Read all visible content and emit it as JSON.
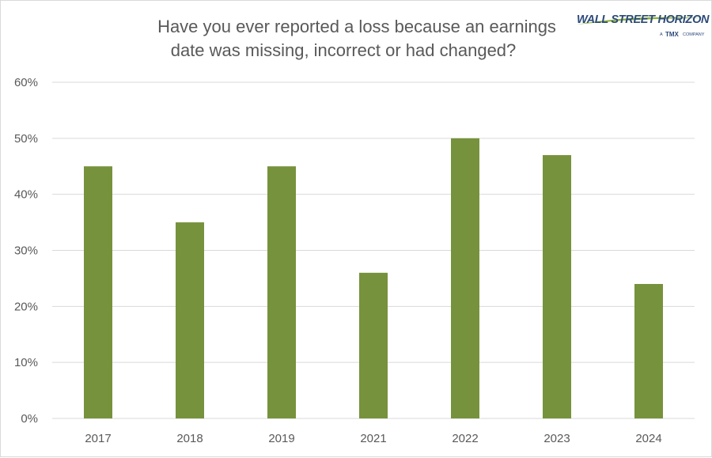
{
  "chart_data": {
    "type": "bar",
    "title": "Have you ever reported a loss because an earnings date was missing, incorrect or had changed?",
    "title_lines": [
      "Have you ever reported a loss because an earnings",
      "date was missing, incorrect or had changed?"
    ],
    "categories": [
      "2017",
      "2018",
      "2019",
      "2021",
      "2022",
      "2023",
      "2024"
    ],
    "values": [
      45,
      35,
      45,
      26,
      50,
      47,
      24
    ],
    "ylim": [
      0,
      60
    ],
    "yticks": [
      0,
      10,
      20,
      30,
      40,
      50,
      60
    ],
    "ytick_labels": [
      "0%",
      "10%",
      "20%",
      "30%",
      "40%",
      "50%",
      "60%"
    ],
    "grid": true,
    "legend": "none",
    "bar_color": "#76923c",
    "grid_color": "#d9d9d9",
    "text_color": "#595959"
  },
  "logo": {
    "name": "WALL STREET HORIZON",
    "tagline_prefix": "A",
    "tagline_brand": "TMX",
    "tagline_suffix": "COMPANY",
    "color": "#2c4a7a",
    "accent": "#8db33a"
  }
}
